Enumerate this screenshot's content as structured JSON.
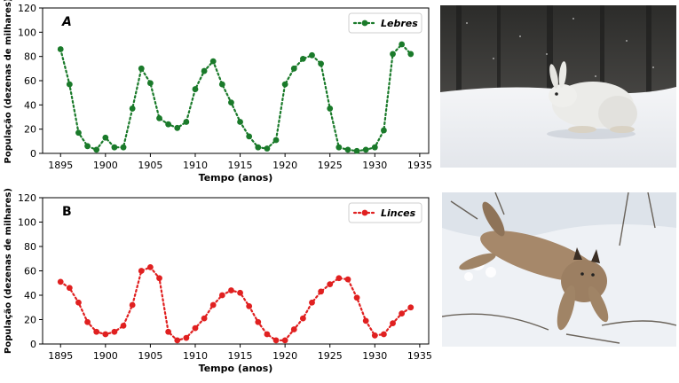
{
  "chart_data": [
    {
      "type": "line",
      "panel_label": "A",
      "xlabel": "Tempo (anos)",
      "ylabel": "População (dezenas de milhares)",
      "xlim": [
        1893,
        1936
      ],
      "ylim": [
        0,
        120
      ],
      "xticks": [
        "1895",
        "1900",
        "1905",
        "1910",
        "1915",
        "1920",
        "1925",
        "1930",
        "1935"
      ],
      "yticks": [
        "0",
        "20",
        "40",
        "60",
        "80",
        "100",
        "120"
      ],
      "grid": false,
      "legend_position": "top-right",
      "series": [
        {
          "name": "Lebres",
          "color": "#1a7a2a",
          "x": [
            1895,
            1896,
            1897,
            1898,
            1899,
            1900,
            1901,
            1902,
            1903,
            1904,
            1905,
            1906,
            1907,
            1908,
            1909,
            1910,
            1911,
            1912,
            1913,
            1914,
            1915,
            1916,
            1917,
            1918,
            1919,
            1920,
            1921,
            1922,
            1923,
            1924,
            1925,
            1926,
            1927,
            1928,
            1929,
            1930,
            1931,
            1932,
            1933,
            1934
          ],
          "y": [
            86,
            57,
            17,
            6,
            3,
            13,
            5,
            5,
            37,
            70,
            58,
            29,
            24,
            21,
            26,
            53,
            68,
            76,
            57,
            42,
            26,
            14,
            5,
            4,
            11,
            57,
            70,
            78,
            81,
            74,
            37,
            5,
            3,
            2,
            3,
            5,
            19,
            82,
            90,
            82
          ]
        }
      ]
    },
    {
      "type": "line",
      "panel_label": "B",
      "xlabel": "Tempo (anos)",
      "ylabel": "População (dezenas de milhares)",
      "xlim": [
        1893,
        1936
      ],
      "ylim": [
        0,
        120
      ],
      "xticks": [
        "1895",
        "1900",
        "1905",
        "1910",
        "1915",
        "1920",
        "1925",
        "1930",
        "1935"
      ],
      "yticks": [
        "0",
        "20",
        "40",
        "60",
        "80",
        "100",
        "120"
      ],
      "grid": false,
      "legend_position": "top-right",
      "series": [
        {
          "name": "Linces",
          "color": "#e02020",
          "x": [
            1895,
            1896,
            1897,
            1898,
            1899,
            1900,
            1901,
            1902,
            1903,
            1904,
            1905,
            1906,
            1907,
            1908,
            1909,
            1910,
            1911,
            1912,
            1913,
            1914,
            1915,
            1916,
            1917,
            1918,
            1919,
            1920,
            1921,
            1922,
            1923,
            1924,
            1925,
            1926,
            1927,
            1928,
            1929,
            1930,
            1931,
            1932,
            1933,
            1934
          ],
          "y": [
            51,
            46,
            34,
            18,
            10,
            8,
            10,
            15,
            32,
            60,
            63,
            54,
            10,
            3,
            5,
            13,
            21,
            32,
            40,
            44,
            42,
            31,
            18,
            8,
            3,
            3,
            12,
            21,
            34,
            43,
            49,
            54,
            53,
            38,
            19,
            7,
            8,
            17,
            25,
            30
          ]
        }
      ]
    }
  ],
  "photos": {
    "hare": {
      "subject": "snowshoe hare in snow"
    },
    "lynx": {
      "subject": "lynx leaping in snow"
    }
  }
}
